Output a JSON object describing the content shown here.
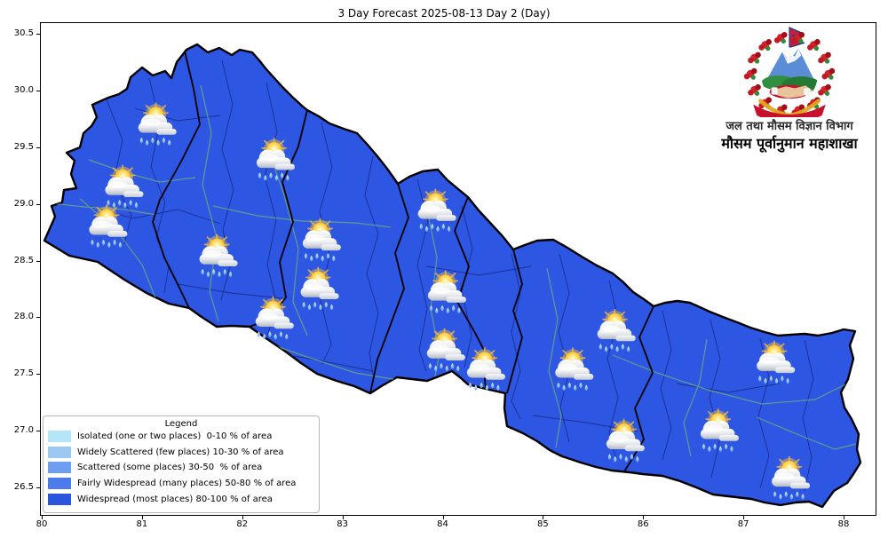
{
  "title": "3 Day Forecast 2025-08-13 Day 2 (Day)",
  "axes": {
    "x_ticks": [
      "80",
      "81",
      "82",
      "83",
      "84",
      "85",
      "86",
      "87",
      "88"
    ],
    "y_ticks": [
      "30.5",
      "30.0",
      "29.5",
      "29.0",
      "28.5",
      "28.0",
      "27.5",
      "27.0",
      "26.5"
    ]
  },
  "legend": {
    "title": "Legend",
    "items": [
      {
        "label": "Isolated (one or two places)  0-10 % of area",
        "color": "#b3e7f7"
      },
      {
        "label": "Widely Scattered (few places) 10-30 % of area",
        "color": "#9cc9f2"
      },
      {
        "label": "Scattered (some places) 30-50  % of area",
        "color": "#6f9ff0"
      },
      {
        "label": "Fairly Widespread (many places) 50-80 % of area",
        "color": "#4d7bec"
      },
      {
        "label": "Widespread (most places) 80-100 % of area",
        "color": "#2b55dd"
      }
    ]
  },
  "map": {
    "region": "Nepal",
    "fill_category": "Widespread (most places) 80-100 % of area",
    "colors": {
      "fill": "#2d56e2",
      "outer_border": "#000000",
      "district_border": "#1c2e94",
      "river": "#5f9c8f"
    },
    "markers": [
      {
        "lon": 81.13,
        "lat": 29.69,
        "icon": "sun-rain-icon"
      },
      {
        "lon": 80.8,
        "lat": 29.14,
        "icon": "sun-rain-icon"
      },
      {
        "lon": 80.64,
        "lat": 28.79,
        "icon": "sun-rain-icon"
      },
      {
        "lon": 82.31,
        "lat": 29.38,
        "icon": "sun-rain-icon"
      },
      {
        "lon": 81.74,
        "lat": 28.53,
        "icon": "sun-rain-icon"
      },
      {
        "lon": 82.77,
        "lat": 28.67,
        "icon": "sun-rain-icon"
      },
      {
        "lon": 82.75,
        "lat": 28.24,
        "icon": "sun-rain-icon"
      },
      {
        "lon": 82.3,
        "lat": 27.98,
        "icon": "sun-rain-icon"
      },
      {
        "lon": 83.92,
        "lat": 28.93,
        "icon": "sun-rain-icon"
      },
      {
        "lon": 84.02,
        "lat": 28.21,
        "icon": "sun-rain-icon"
      },
      {
        "lon": 84.01,
        "lat": 27.7,
        "icon": "sun-rain-icon"
      },
      {
        "lon": 84.41,
        "lat": 27.53,
        "icon": "sun-rain-icon"
      },
      {
        "lon": 85.29,
        "lat": 27.53,
        "icon": "sun-rain-icon"
      },
      {
        "lon": 85.71,
        "lat": 27.87,
        "icon": "sun-rain-icon"
      },
      {
        "lon": 85.8,
        "lat": 26.9,
        "icon": "sun-rain-icon"
      },
      {
        "lon": 86.74,
        "lat": 26.99,
        "icon": "sun-rain-icon"
      },
      {
        "lon": 87.3,
        "lat": 27.59,
        "icon": "sun-rain-icon"
      },
      {
        "lon": 87.45,
        "lat": 26.57,
        "icon": "sun-rain-icon"
      }
    ]
  },
  "logo": {
    "department": "जल तथा मौसम विज्ञान विभाग",
    "division": "मौसम पूर्वानुमान महाशाखा"
  }
}
